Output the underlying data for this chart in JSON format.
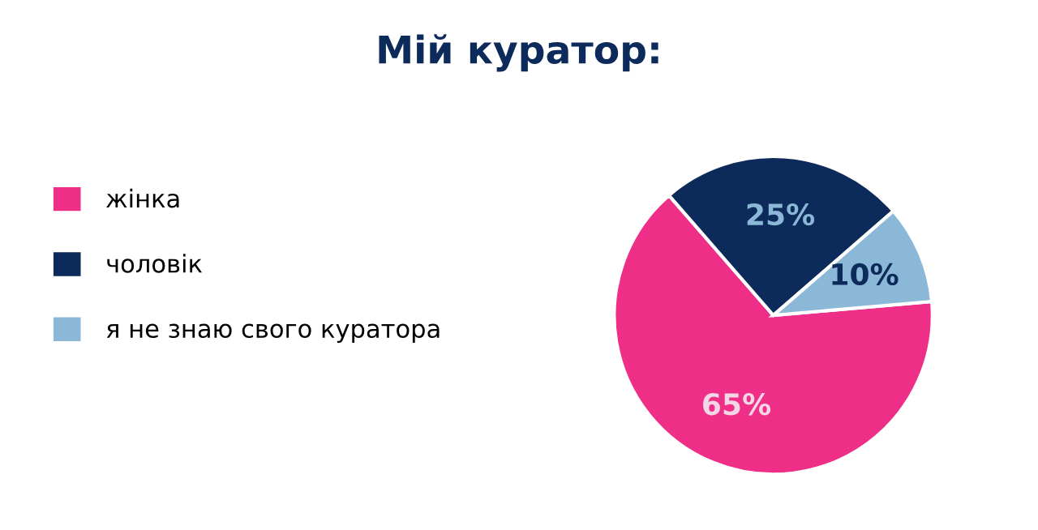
{
  "chart_data": {
    "type": "pie",
    "title": "Мій куратор:",
    "categories": [
      "жінка",
      "чоловік",
      "я не знаю свого куратора"
    ],
    "values": [
      65,
      25,
      10
    ],
    "colors": [
      "#ee2e87",
      "#0d2b5a",
      "#8cb8d8"
    ],
    "value_labels": [
      "65%",
      "25%",
      "10%"
    ],
    "legend": "left"
  }
}
